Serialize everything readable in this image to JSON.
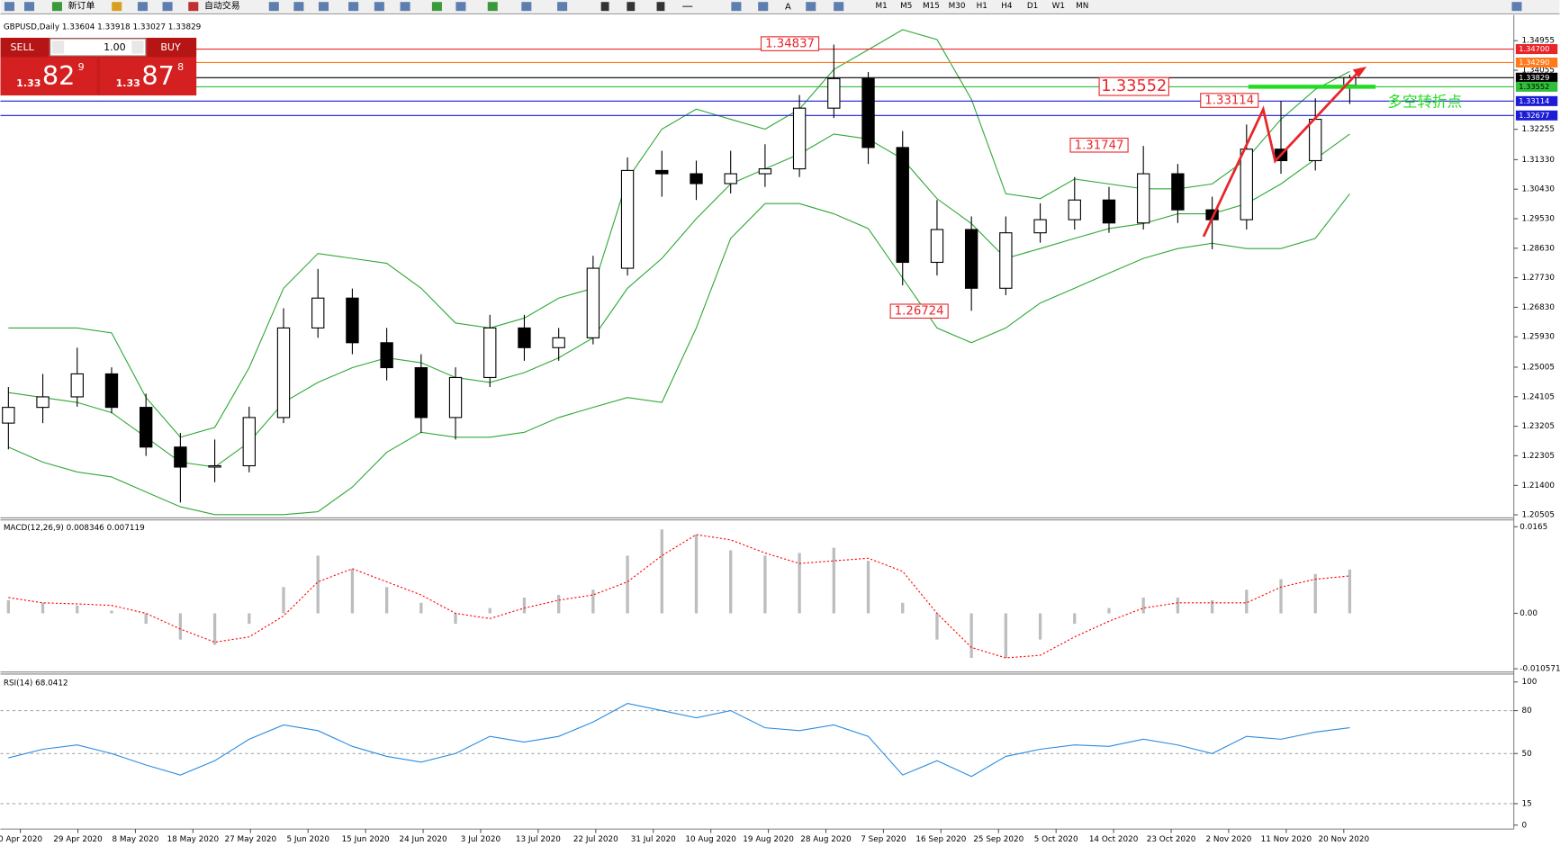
{
  "toolbar": {
    "new_order": "新订单",
    "auto_trading": "自动交易",
    "text_tool": "A",
    "timeframes": [
      "M1",
      "M5",
      "M15",
      "M30",
      "H1",
      "H4",
      "D1",
      "W1",
      "MN"
    ]
  },
  "chart_header": "GBPUSD,Daily 1.33604 1.33918 1.33027 1.33829",
  "trade_panel": {
    "sell": "SELL",
    "lots": "1.00",
    "buy": "BUY",
    "sell_price": {
      "big": "1.33",
      "pips": "82",
      "fraction": "9"
    },
    "buy_price": {
      "big": "1.33",
      "pips": "87",
      "fraction": "8"
    }
  },
  "price_chart": {
    "ylim": [
      1.2044,
      1.3559
    ],
    "yticks": [
      1.20505,
      {
        "value": 1.214,
        "label": "1.21400"
      },
      1.22305,
      1.23205,
      1.24105,
      1.25005,
      {
        "value": 1.2593,
        "label": "1.25930"
      },
      {
        "value": 1.2683,
        "label": "1.26830"
      },
      {
        "value": 1.2773,
        "label": "1.27730"
      },
      {
        "value": 1.2863,
        "label": "1.28630"
      },
      {
        "value": 1.2953,
        "label": "1.29530"
      },
      {
        "value": 1.3043,
        "label": "1.30430"
      },
      {
        "value": 1.3133,
        "label": "1.31330"
      },
      1.32255,
      1.34055,
      1.34955
    ],
    "levels": [
      {
        "value": {
          "value": 1.347,
          "label": "1.34700"
        },
        "color": "#e8262a"
      },
      {
        "value": {
          "value": 1.3429,
          "label": "1.34290"
        },
        "color": "#ff7a1a"
      },
      {
        "value": 1.33829,
        "color": "#000000"
      },
      {
        "value": 1.33552,
        "color": "#2fbf3a"
      },
      {
        "value": 1.33114,
        "color": "#1c1cd6"
      },
      {
        "value": 1.32677,
        "color": "#1c1cd6"
      }
    ],
    "annotations": [
      1.34837,
      1.33552,
      1.33114,
      1.31747,
      1.26724
    ],
    "annotation_color": "#e8262a",
    "pivot_label": "多空转折点",
    "pivot_color": "#22dd22",
    "bull_color": "#ffffff",
    "bear_color": "#000000",
    "open": [
      1.233,
      1.2378,
      1.241,
      1.248,
      1.2378,
      1.2257,
      1.2196,
      1.22,
      1.2347,
      1.262,
      1.2711,
      1.2575,
      1.2499,
      1.2347,
      1.2469,
      1.262,
      1.256,
      1.259,
      1.2802,
      1.31,
      1.309,
      1.306,
      1.309,
      1.3105,
      1.329,
      1.338,
      1.317,
      1.282,
      1.292,
      1.2741,
      1.291,
      1.295,
      1.301,
      1.294,
      1.309,
      1.298,
      1.295,
      1.3165,
      1.313,
      1.33604
    ],
    "high": [
      1.244,
      1.248,
      1.256,
      1.25,
      1.242,
      1.23,
      1.228,
      1.238,
      1.268,
      1.28,
      1.274,
      1.262,
      1.254,
      1.25,
      1.266,
      1.266,
      1.262,
      1.284,
      1.314,
      1.316,
      1.313,
      1.316,
      1.318,
      1.333,
      1.34837,
      1.34,
      1.322,
      1.301,
      1.296,
      1.296,
      1.3,
      1.308,
      1.305,
      1.31747,
      1.312,
      1.302,
      1.324,
      1.33114,
      1.332,
      1.33918
    ],
    "low": [
      1.225,
      1.233,
      1.238,
      1.236,
      1.223,
      1.2088,
      1.215,
      1.218,
      1.233,
      1.259,
      1.254,
      1.246,
      1.23,
      1.228,
      1.244,
      1.252,
      1.252,
      1.257,
      1.278,
      1.302,
      1.301,
      1.303,
      1.305,
      1.308,
      1.326,
      1.312,
      1.275,
      1.278,
      1.26724,
      1.272,
      1.288,
      1.292,
      1.291,
      1.292,
      1.294,
      1.286,
      1.292,
      1.309,
      1.31,
      1.33027
    ],
    "close": [
      1.2378,
      1.241,
      1.248,
      1.2378,
      1.2257,
      1.2196,
      1.22,
      1.2347,
      1.262,
      1.2711,
      1.2575,
      1.2499,
      1.2347,
      1.2469,
      1.262,
      1.256,
      1.259,
      1.2802,
      1.31,
      1.309,
      1.306,
      1.309,
      1.3105,
      1.329,
      1.338,
      1.317,
      1.282,
      1.292,
      1.2741,
      1.291,
      1.295,
      1.301,
      1.294,
      1.309,
      1.298,
      1.295,
      1.3165,
      1.313,
      1.3256,
      1.33829
    ],
    "band_color": "#2ea836",
    "upper": [
      1.262,
      1.262,
      1.262,
      1.2605,
      1.2408,
      1.2287,
      1.2317,
      1.2499,
      1.2741,
      1.2847,
      1.2832,
      1.2817,
      1.2741,
      1.2635,
      1.262,
      1.265,
      1.2711,
      1.2741,
      1.3074,
      1.3226,
      1.3287,
      1.3256,
      1.3226,
      1.3287,
      1.3408,
      1.3468,
      1.3529,
      1.3499,
      1.3317,
      1.3029,
      1.3014,
      1.3074,
      1.3059,
      1.3044,
      1.3044,
      1.3059,
      1.3135,
      1.3256,
      1.3347,
      1.3402
    ],
    "middle": [
      1.2423,
      1.2408,
      1.2393,
      1.2362,
      1.2287,
      1.2211,
      1.2196,
      1.2272,
      1.2393,
      1.2454,
      1.2499,
      1.2529,
      1.2514,
      1.2469,
      1.2454,
      1.2484,
      1.2529,
      1.259,
      1.2741,
      1.2832,
      1.2953,
      1.3059,
      1.3105,
      1.315,
      1.3211,
      1.3196,
      1.3135,
      1.3014,
      1.2938,
      1.2832,
      1.2862,
      1.2893,
      1.2923,
      1.2938,
      1.2968,
      1.2968,
      1.2999,
      1.3059,
      1.3135,
      1.3211
    ],
    "lower": [
      1.2257,
      1.2211,
      1.2181,
      1.2166,
      1.212,
      1.2075,
      1.2051,
      1.2051,
      1.2051,
      1.206,
      1.2135,
      1.2241,
      1.2302,
      1.2287,
      1.2287,
      1.2302,
      1.2347,
      1.2378,
      1.2408,
      1.2393,
      1.262,
      1.2893,
      1.2999,
      1.2999,
      1.2968,
      1.2923,
      1.2772,
      1.262,
      1.2575,
      1.262,
      1.2696,
      1.2741,
      1.2787,
      1.2832,
      1.2862,
      1.2878,
      1.2862,
      1.2862,
      1.2893,
      1.3029
    ]
  },
  "x_axis": [
    "0 Apr 2020",
    "29 Apr 2020",
    "8 May 2020",
    "18 May 2020",
    "27 May 2020",
    "5 Jun 2020",
    "15 Jun 2020",
    "24 Jun 2020",
    "3 Jul 2020",
    "13 Jul 2020",
    "22 Jul 2020",
    "31 Jul 2020",
    "10 Aug 2020",
    "19 Aug 2020",
    "28 Aug 2020",
    "7 Sep 2020",
    "16 Sep 2020",
    "25 Sep 2020",
    "5 Oct 2020",
    "14 Oct 2020",
    "23 Oct 2020",
    "2 Nov 2020",
    "11 Nov 2020",
    "20 Nov 2020"
  ],
  "macd": {
    "label": "MACD(12,26,9) 0.008346 0.007119",
    "ylim": [
      -0.011,
      0.0178
    ],
    "yticks": [
      0.0165,
      {
        "value": 0,
        "label": "0.00"
      },
      -0.010571
    ],
    "hist_color": "#bdbdbd",
    "signal_color": "#ff0000",
    "histogram": [
      0.0025,
      0.002,
      0.0015,
      0.0005,
      -0.002,
      -0.005,
      -0.006,
      -0.002,
      0.005,
      0.011,
      0.0085,
      0.005,
      0.002,
      -0.002,
      0.001,
      0.003,
      0.0035,
      0.0045,
      0.011,
      0.016,
      0.015,
      0.012,
      0.011,
      0.0115,
      0.0125,
      0.01,
      0.002,
      -0.005,
      -0.0085,
      -0.0085,
      -0.005,
      -0.002,
      0.001,
      0.003,
      0.003,
      0.0025,
      0.0045,
      0.0065,
      0.0075,
      0.008346
    ],
    "signal": [
      0.003,
      0.002,
      0.0018,
      0.0015,
      0.0,
      -0.003,
      -0.0055,
      -0.0045,
      -0.0005,
      0.006,
      0.0085,
      0.006,
      0.0035,
      0.0,
      -0.001,
      0.001,
      0.0025,
      0.0035,
      0.006,
      0.011,
      0.015,
      0.014,
      0.0115,
      0.0095,
      0.01,
      0.0105,
      0.008,
      0.0,
      -0.0065,
      -0.0085,
      -0.008,
      -0.0045,
      -0.0015,
      0.001,
      0.002,
      0.002,
      0.002,
      0.005,
      0.0065,
      0.007119
    ]
  },
  "rsi": {
    "label": "RSI(14) 68.0412",
    "ylim": [
      0,
      100
    ],
    "yticks": [
      0,
      15,
      50,
      80,
      100
    ],
    "levels": [
      15,
      50,
      80
    ],
    "color": "#2b8be0",
    "values": [
      47,
      53,
      56,
      50,
      42,
      35,
      45,
      60,
      70,
      66,
      55,
      48,
      44,
      50,
      62,
      58,
      62,
      72,
      85,
      80,
      75,
      80,
      68,
      66,
      70,
      62,
      35,
      45,
      34,
      48,
      53,
      56,
      55,
      60,
      56,
      50,
      62,
      60,
      65,
      68.0412
    ]
  }
}
